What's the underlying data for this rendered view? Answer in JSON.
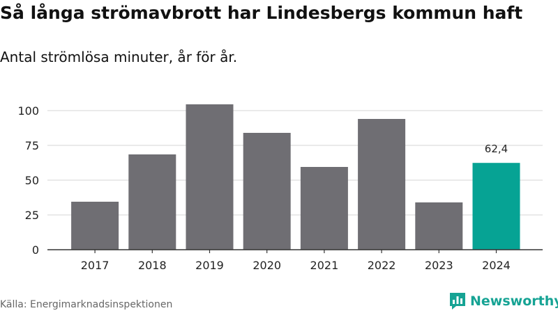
{
  "header": {
    "title": "Så långa strömavbrott har Lindesbergs kommun haft",
    "subtitle": "Antal strömlösa minuter, år för år."
  },
  "footer": {
    "source": "Källa: Energimarknadsinspektionen",
    "brand": "Newsworthy",
    "brand_icon": "newsworthy-logo-icon"
  },
  "colors": {
    "bar": "#6f6e73",
    "highlight": "#06a394",
    "grid": "#dddddd",
    "axis": "#333333"
  },
  "chart_data": {
    "type": "bar",
    "title": "Så långa strömavbrott har Lindesbergs kommun haft",
    "subtitle": "Antal strömlösa minuter, år för år.",
    "xlabel": "",
    "ylabel": "",
    "categories": [
      "2017",
      "2018",
      "2019",
      "2020",
      "2021",
      "2022",
      "2023",
      "2024"
    ],
    "values": [
      34.5,
      68.5,
      104.5,
      84,
      59.5,
      94,
      34,
      62.4
    ],
    "ylim": [
      0,
      110
    ],
    "yticks": [
      0,
      25,
      50,
      75,
      100
    ],
    "ytick_labels": [
      "0",
      "25",
      "50",
      "75",
      "100"
    ],
    "highlight_index": 7,
    "data_labels": [
      {
        "index": 7,
        "text": "62,4"
      }
    ],
    "grid": true,
    "legend": "none"
  }
}
